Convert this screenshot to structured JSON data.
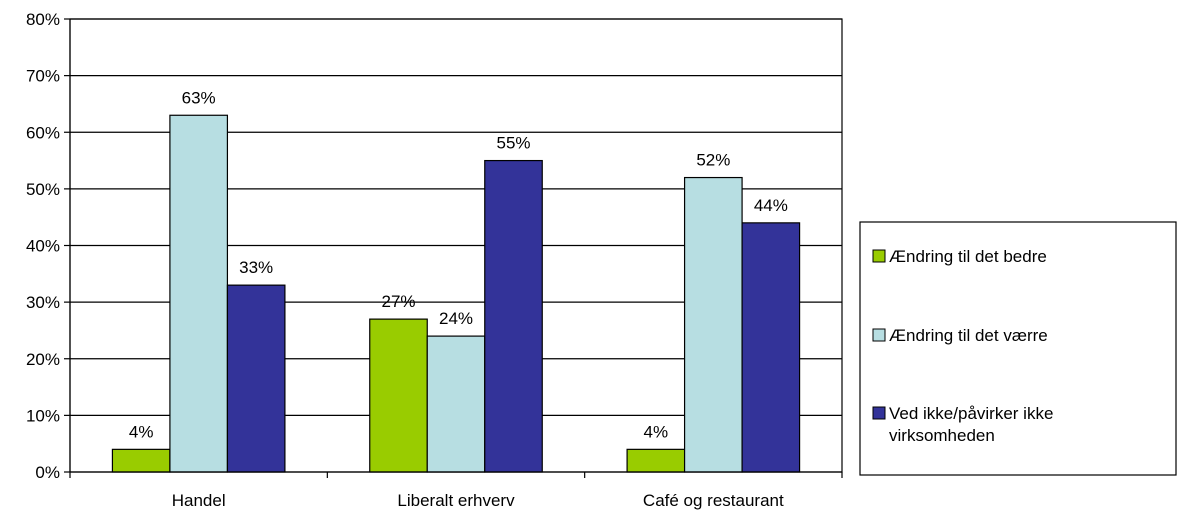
{
  "chart_data": {
    "type": "bar",
    "categories": [
      "Handel",
      "Liberalt erhverv",
      "Café og restaurant"
    ],
    "series": [
      {
        "name": "Ændring til det bedre",
        "legend_lines": [
          "Ændring til det bedre"
        ],
        "values": [
          4,
          27,
          4
        ],
        "labels": [
          "4%",
          "27%",
          "4%"
        ],
        "color": "#99cc00"
      },
      {
        "name": "Ændring til det værre",
        "legend_lines": [
          "Ændring til det værre"
        ],
        "values": [
          63,
          24,
          52
        ],
        "labels": [
          "63%",
          "24%",
          "52%"
        ],
        "color": "#b7dee2"
      },
      {
        "name": "Ved ikke/påvirker ikke virksomheden",
        "legend_lines": [
          "Ved ikke/påvirker ikke",
          "virksomheden"
        ],
        "values": [
          33,
          55,
          44
        ],
        "labels": [
          "33%",
          "55%",
          "44%"
        ],
        "color": "#333399"
      }
    ],
    "ylim": [
      0,
      80
    ],
    "yticks": [
      0,
      10,
      20,
      30,
      40,
      50,
      60,
      70,
      80
    ],
    "ytick_labels": [
      "0%",
      "10%",
      "20%",
      "30%",
      "40%",
      "50%",
      "60%",
      "70%",
      "80%"
    ],
    "grid": true,
    "legend_position": "right",
    "title": "",
    "xlabel": "",
    "ylabel": ""
  }
}
